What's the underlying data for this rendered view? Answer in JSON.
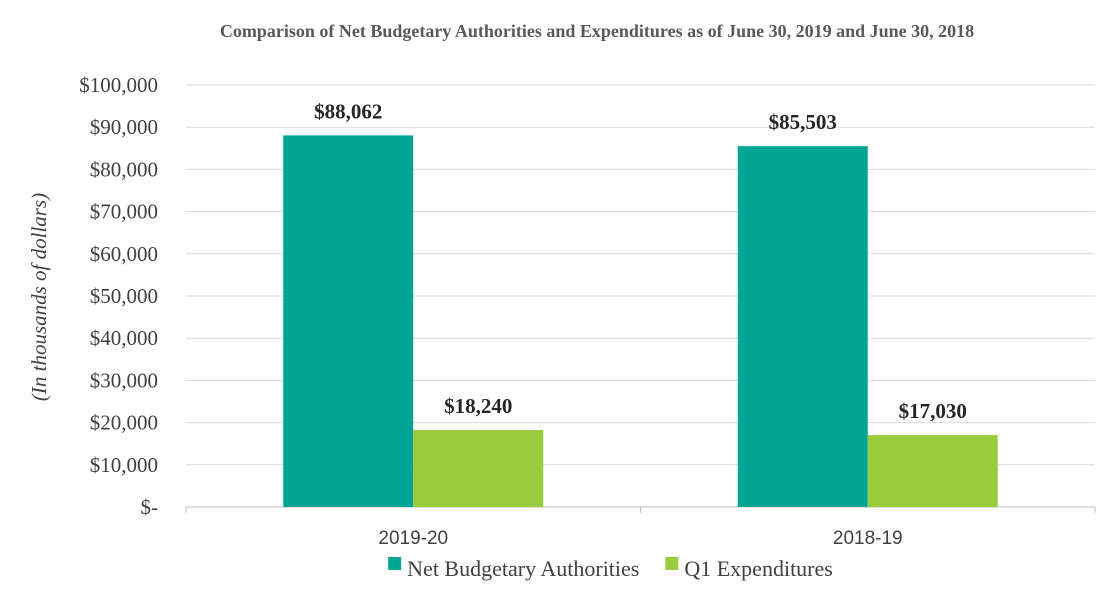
{
  "chart_data": {
    "type": "bar",
    "title": "Comparison of Net Budgetary Authorities and Expenditures as of June 30, 2019 and June 30, 2018",
    "xlabel": "",
    "ylabel": "(In thousands of dollars)",
    "categories": [
      "2019-20",
      "2018-19"
    ],
    "series": [
      {
        "name": "Net Budgetary Authorities",
        "color": "#00a693",
        "values": [
          88062,
          85503
        ],
        "labels": [
          "$88,062",
          "$85,503"
        ]
      },
      {
        "name": "Q1 Expenditures",
        "color": "#9acb3c",
        "values": [
          18240,
          17030
        ],
        "labels": [
          "$18,240",
          "$17,030"
        ]
      }
    ],
    "ylim": [
      0,
      100000
    ],
    "yticks": [
      0,
      10000,
      20000,
      30000,
      40000,
      50000,
      60000,
      70000,
      80000,
      90000,
      100000
    ],
    "ytick_labels": [
      "$-",
      "$10,000",
      "$20,000",
      "$30,000",
      "$40,000",
      "$50,000",
      "$60,000",
      "$70,000",
      "$80,000",
      "$90,000",
      "$100,000"
    ],
    "grid": true,
    "legend_position": "bottom"
  }
}
